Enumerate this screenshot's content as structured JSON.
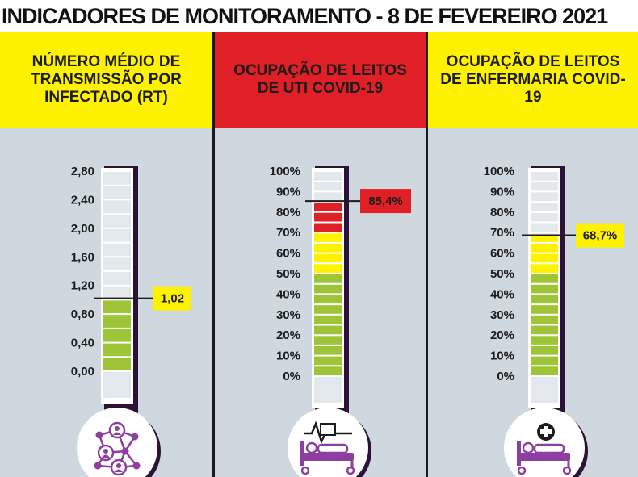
{
  "title": "INDICADORES DE MONITORAMENTO - 8 DE FEVEREIRO 2021",
  "colors": {
    "green": "#9dc537",
    "yellow": "#fff200",
    "red": "#e01f26",
    "purple": "#8e3ea0",
    "panel_bg": "#cfd8de",
    "tube_bg": "#e3e8ec"
  },
  "chart_data": [
    {
      "type": "bar",
      "title": "NÚMERO MÉDIO DE TRANSMISSÃO POR INFECTADO (RT)",
      "header_color": "#fff200",
      "ticks": [
        "2,80",
        "2,40",
        "2,00",
        "1,60",
        "1,20",
        "0,80",
        "0,40",
        "0,00"
      ],
      "ylim": [
        0,
        2.8
      ],
      "value": 1.02,
      "value_label": "1,02",
      "label_color": "#fff200",
      "icon": "people-network-icon"
    },
    {
      "type": "bar",
      "title": "OCUPAÇÃO DE LEITOS DE UTI COVID-19",
      "header_color": "#e01f26",
      "ticks": [
        "100%",
        "90%",
        "80%",
        "70%",
        "60%",
        "50%",
        "40%",
        "30%",
        "20%",
        "10%",
        "0%"
      ],
      "ylim": [
        0,
        100
      ],
      "value": 85.4,
      "value_label": "85,4%",
      "label_color": "#e01f26",
      "icon": "icu-bed-monitor-icon"
    },
    {
      "type": "bar",
      "title": "OCUPAÇÃO DE LEITOS DE ENFERMARIA COVID-19",
      "header_color": "#fff200",
      "ticks": [
        "100%",
        "90%",
        "80%",
        "70%",
        "60%",
        "50%",
        "40%",
        "30%",
        "20%",
        "10%",
        "0%"
      ],
      "ylim": [
        0,
        100
      ],
      "value": 68.7,
      "value_label": "68,7%",
      "label_color": "#fff200",
      "icon": "hospital-bed-icon"
    }
  ]
}
